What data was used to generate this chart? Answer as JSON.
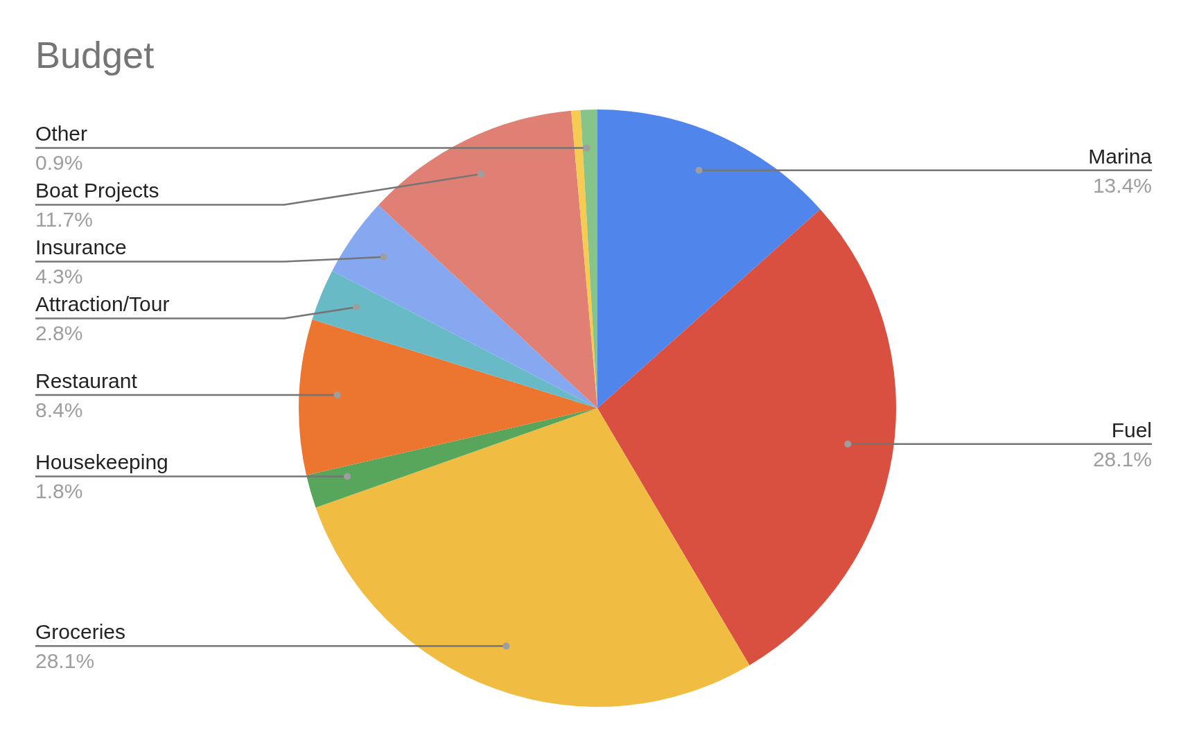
{
  "chart_data": {
    "type": "pie",
    "title": "Budget",
    "categories": [
      "Marina",
      "Fuel",
      "Groceries",
      "Housekeeping",
      "Restaurant",
      "Attraction/Tour",
      "Insurance",
      "Boat Projects",
      null,
      "Other"
    ],
    "values": [
      13.4,
      28.1,
      28.1,
      1.8,
      8.4,
      2.8,
      4.3,
      11.7,
      0.5,
      0.9
    ],
    "value_labels": [
      "13.4%",
      "28.1%",
      "28.1%",
      "1.8%",
      "8.4%",
      "2.8%",
      "4.3%",
      "11.7%",
      null,
      "0.9%"
    ],
    "colors": [
      "#5086ec",
      "#d95040",
      "#f1bc42",
      "#58a65c",
      "#ec7530",
      "#68bac6",
      "#85a8f0",
      "#e08075",
      "#f6cb52",
      "#87c48a"
    ],
    "legend": false
  }
}
